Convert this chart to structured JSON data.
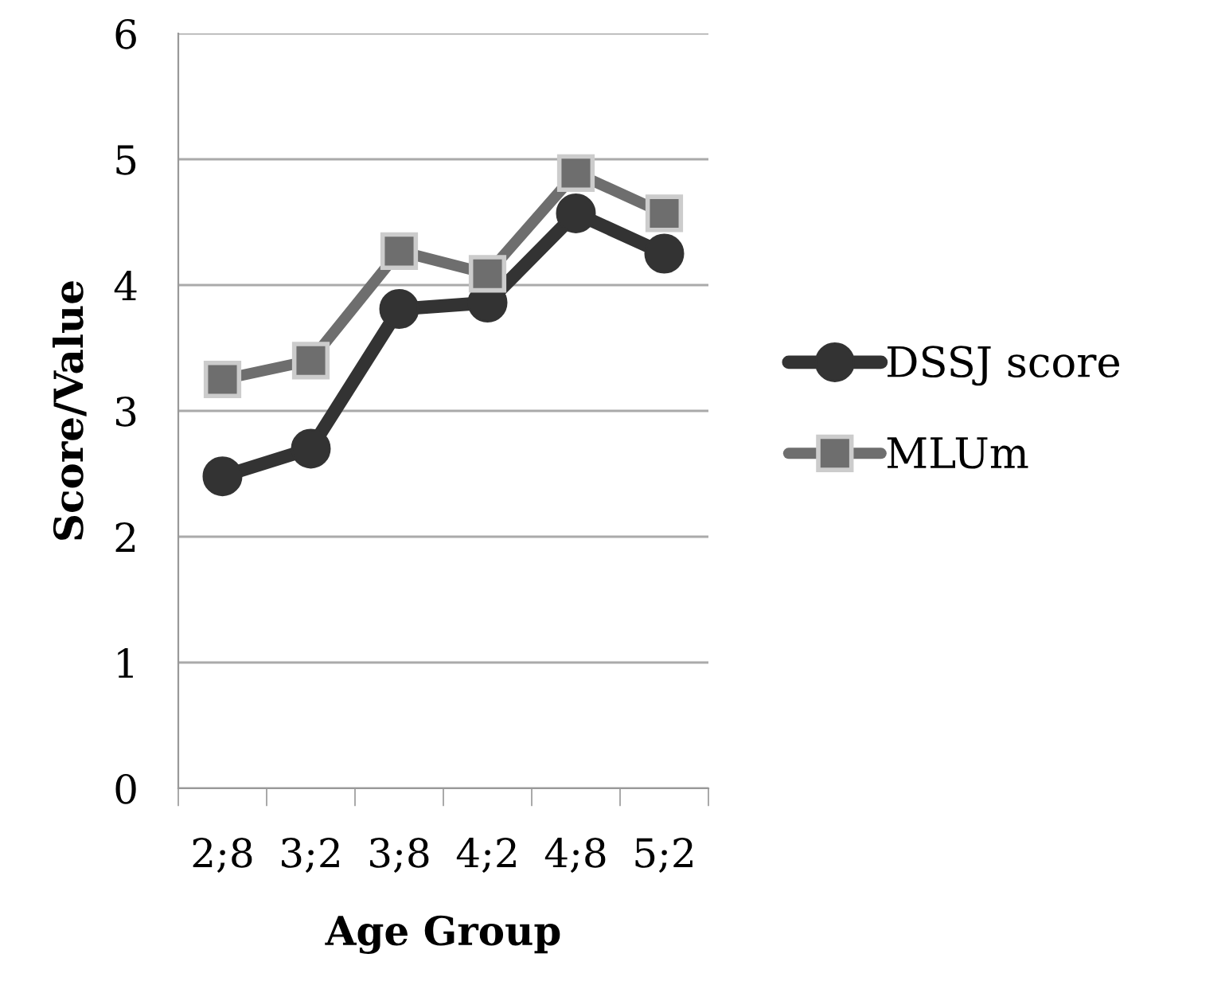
{
  "chart_data": {
    "type": "line",
    "xlabel": "Age Group",
    "ylabel": "Score/Value",
    "categories": [
      "2;8",
      "3;2",
      "3;8",
      "4;2",
      "4;8",
      "5;2"
    ],
    "series": [
      {
        "name": "DSSJ score",
        "color": "#333333",
        "marker": "circle",
        "values": [
          2.48,
          2.7,
          3.81,
          3.86,
          4.57,
          4.25
        ]
      },
      {
        "name": "MLUm",
        "color": "#6e6e6e",
        "marker": "square",
        "values": [
          3.25,
          3.4,
          4.27,
          4.09,
          4.89,
          4.57
        ]
      }
    ],
    "ylim": [
      0,
      6
    ],
    "yticks": [
      0,
      1,
      2,
      3,
      4,
      5,
      6
    ],
    "grid": "y",
    "legend": "right",
    "line_style": "solid"
  }
}
